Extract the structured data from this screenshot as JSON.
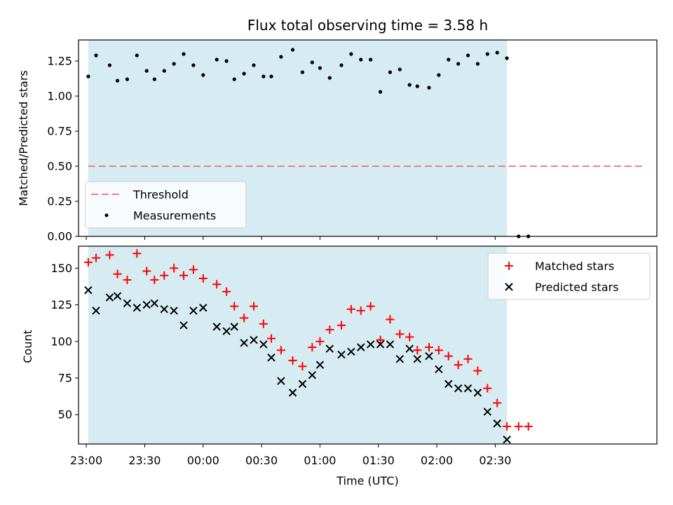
{
  "chart_data": [
    {
      "type": "scatter",
      "title": "Flux total observing time = 3.58 h",
      "xlabel": "",
      "ylabel": "Matched/Predicted stars",
      "xlim": [
        "22:56",
        "03:53"
      ],
      "ylim": [
        0,
        1.4
      ],
      "yticks": [
        "0.00",
        "0.25",
        "0.50",
        "0.75",
        "1.00",
        "1.25"
      ],
      "shaded_span": {
        "from": "23:01",
        "to": "02:36",
        "color": "#add8e6"
      },
      "threshold": {
        "name": "Threshold",
        "value": 0.5,
        "from": "23:01",
        "to": "03:47",
        "color": "#f08080",
        "style": "dashed"
      },
      "series": [
        {
          "name": "Measurements",
          "marker": "dot",
          "color": "#000000",
          "x": [
            "23:01",
            "23:05",
            "23:12",
            "23:16",
            "23:21",
            "23:26",
            "23:31",
            "23:35",
            "23:40",
            "23:45",
            "23:50",
            "23:55",
            "00:00",
            "00:07",
            "00:12",
            "00:16",
            "00:21",
            "00:26",
            "00:31",
            "00:35",
            "00:40",
            "00:46",
            "00:51",
            "00:56",
            "01:00",
            "01:05",
            "01:11",
            "01:16",
            "01:21",
            "01:26",
            "01:31",
            "01:36",
            "01:41",
            "01:46",
            "01:50",
            "01:56",
            "02:01",
            "02:06",
            "02:11",
            "02:16",
            "02:21",
            "02:26",
            "02:31",
            "02:36",
            "02:42",
            "02:47"
          ],
          "y": [
            1.14,
            1.29,
            1.22,
            1.11,
            1.12,
            1.29,
            1.18,
            1.12,
            1.18,
            1.23,
            1.3,
            1.22,
            1.15,
            1.26,
            1.25,
            1.12,
            1.16,
            1.22,
            1.14,
            1.14,
            1.28,
            1.33,
            1.17,
            1.24,
            1.2,
            1.13,
            1.22,
            1.3,
            1.26,
            1.26,
            1.03,
            1.17,
            1.19,
            1.08,
            1.07,
            1.06,
            1.15,
            1.26,
            1.23,
            1.29,
            1.23,
            1.3,
            1.31,
            1.27,
            0.0,
            0.0
          ]
        }
      ],
      "legend": {
        "placement": "lower-left",
        "entries": [
          "Threshold",
          "Measurements"
        ]
      }
    },
    {
      "type": "scatter",
      "title": "",
      "xlabel": "Time (UTC)",
      "ylabel": "Count",
      "xlim": [
        "22:56",
        "03:53"
      ],
      "ylim": [
        30,
        165
      ],
      "yticks": [
        "50",
        "75",
        "100",
        "125",
        "150"
      ],
      "xticks": [
        "23:00",
        "23:30",
        "00:00",
        "00:30",
        "01:00",
        "01:30",
        "02:00",
        "02:30"
      ],
      "shaded_span": {
        "from": "23:01",
        "to": "02:36",
        "color": "#add8e6"
      },
      "series": [
        {
          "name": "Matched stars",
          "marker": "plus",
          "color": "#ff0000",
          "x": [
            "23:01",
            "23:05",
            "23:12",
            "23:16",
            "23:21",
            "23:26",
            "23:31",
            "23:35",
            "23:40",
            "23:45",
            "23:50",
            "23:55",
            "00:00",
            "00:07",
            "00:12",
            "00:16",
            "00:21",
            "00:26",
            "00:31",
            "00:35",
            "00:40",
            "00:46",
            "00:51",
            "00:56",
            "01:00",
            "01:05",
            "01:11",
            "01:16",
            "01:21",
            "01:26",
            "01:31",
            "01:36",
            "01:41",
            "01:46",
            "01:50",
            "01:56",
            "02:01",
            "02:06",
            "02:11",
            "02:16",
            "02:21",
            "02:26",
            "02:31",
            "02:36",
            "02:42",
            "02:47"
          ],
          "y": [
            154,
            157,
            159,
            146,
            142,
            160,
            148,
            142,
            145,
            150,
            145,
            149,
            143,
            139,
            134,
            124,
            116,
            124,
            112,
            102,
            94,
            87,
            83,
            96,
            100,
            108,
            111,
            122,
            121,
            124,
            101,
            115,
            105,
            103,
            94,
            96,
            94,
            90,
            84,
            88,
            80,
            68,
            58,
            42,
            42,
            42
          ]
        },
        {
          "name": "Predicted stars",
          "marker": "x",
          "color": "#000000",
          "x": [
            "23:01",
            "23:05",
            "23:12",
            "23:16",
            "23:21",
            "23:26",
            "23:31",
            "23:35",
            "23:40",
            "23:45",
            "23:50",
            "23:55",
            "00:00",
            "00:07",
            "00:12",
            "00:16",
            "00:21",
            "00:26",
            "00:31",
            "00:35",
            "00:40",
            "00:46",
            "00:51",
            "00:56",
            "01:00",
            "01:05",
            "01:11",
            "01:16",
            "01:21",
            "01:26",
            "01:31",
            "01:36",
            "01:41",
            "01:46",
            "01:50",
            "01:56",
            "02:01",
            "02:06",
            "02:11",
            "02:16",
            "02:21",
            "02:26",
            "02:31",
            "02:36"
          ],
          "y": [
            135,
            121,
            130,
            131,
            126,
            123,
            125,
            126,
            122,
            121,
            111,
            121,
            123,
            110,
            107,
            110,
            99,
            101,
            98,
            89,
            73,
            65,
            71,
            77,
            84,
            95,
            91,
            93,
            96,
            98,
            98,
            98,
            88,
            95,
            88,
            90,
            81,
            71,
            68,
            68,
            65,
            52,
            44,
            33
          ]
        }
      ],
      "legend": {
        "placement": "top-right",
        "entries": [
          "Matched stars",
          "Predicted stars"
        ]
      }
    }
  ]
}
